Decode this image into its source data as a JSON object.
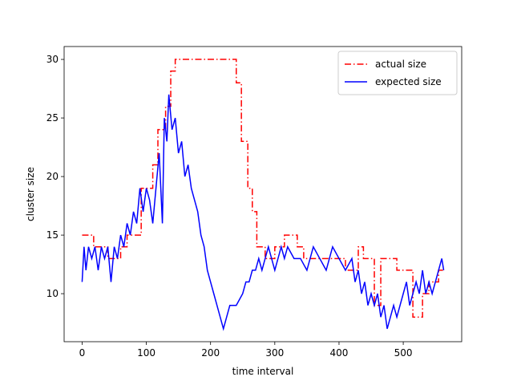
{
  "chart_data": {
    "type": "line",
    "x_label": "time interval",
    "y_label": "cluster size",
    "xlim": [
      -28,
      591
    ],
    "ylim": [
      5.9,
      31.1
    ],
    "xticks": [
      0,
      100,
      200,
      300,
      400,
      500
    ],
    "yticks": [
      10,
      15,
      20,
      25,
      30
    ],
    "legend": "upper right",
    "series": [
      {
        "name": "actual size",
        "color": "#ff0000",
        "dash": "dashdot",
        "x": [
          0,
          18,
          18,
          40,
          40,
          60,
          60,
          70,
          70,
          92,
          92,
          110,
          110,
          118,
          118,
          130,
          130,
          138,
          138,
          145,
          145,
          240,
          240,
          248,
          248,
          258,
          258,
          265,
          265,
          272,
          272,
          285,
          285,
          300,
          300,
          315,
          315,
          335,
          335,
          345,
          345,
          410,
          410,
          430,
          430,
          438,
          438,
          455,
          455,
          465,
          465,
          490,
          490,
          515,
          515,
          530,
          530,
          540,
          540,
          555,
          555,
          563
        ],
        "values": [
          15,
          15,
          14,
          14,
          13,
          13,
          14,
          14,
          15,
          15,
          19,
          19,
          21,
          21,
          24,
          24,
          26,
          26,
          29,
          29,
          30,
          30,
          28,
          28,
          23,
          23,
          19,
          19,
          17,
          17,
          14,
          14,
          13,
          13,
          14,
          14,
          15,
          15,
          14,
          14,
          13,
          13,
          12,
          12,
          14,
          14,
          13,
          13,
          9,
          9,
          13,
          13,
          12,
          12,
          8,
          8,
          10,
          10,
          11,
          11,
          12,
          12
        ]
      },
      {
        "name": "expected size",
        "color": "#0000ff",
        "dash": "solid",
        "x": [
          0,
          3,
          6,
          10,
          15,
          20,
          25,
          30,
          35,
          40,
          45,
          50,
          55,
          60,
          65,
          70,
          75,
          80,
          85,
          90,
          95,
          100,
          105,
          110,
          115,
          120,
          125,
          128,
          132,
          135,
          140,
          145,
          150,
          155,
          160,
          165,
          170,
          175,
          180,
          185,
          190,
          195,
          200,
          205,
          210,
          215,
          220,
          225,
          230,
          240,
          250,
          255,
          260,
          265,
          270,
          275,
          280,
          285,
          290,
          295,
          300,
          305,
          310,
          315,
          320,
          330,
          340,
          350,
          360,
          370,
          380,
          390,
          400,
          410,
          420,
          425,
          430,
          435,
          440,
          445,
          450,
          455,
          460,
          465,
          470,
          475,
          480,
          485,
          490,
          495,
          500,
          505,
          510,
          515,
          520,
          525,
          530,
          535,
          540,
          545,
          550,
          555,
          560,
          563
        ],
        "values": [
          11,
          14,
          12,
          14,
          13,
          14,
          12,
          14,
          13,
          14,
          11,
          14,
          13,
          15,
          14,
          16,
          15,
          17,
          16,
          19,
          17,
          19,
          18,
          16,
          19,
          22,
          16,
          25,
          23,
          27,
          24,
          25,
          22,
          23,
          20,
          21,
          19,
          18,
          17,
          15,
          14,
          12,
          11,
          10,
          9,
          8,
          7,
          8,
          9,
          9,
          10,
          11,
          11,
          12,
          12,
          13,
          12,
          13,
          14,
          13,
          12,
          13,
          14,
          13,
          14,
          13,
          13,
          12,
          14,
          13,
          12,
          14,
          13,
          12,
          13,
          11,
          12,
          10,
          11,
          9,
          10,
          9,
          10,
          8,
          9,
          7,
          8,
          9,
          8,
          9,
          10,
          11,
          9,
          10,
          11,
          10,
          12,
          10,
          11,
          10,
          11,
          12,
          13,
          12
        ]
      }
    ]
  }
}
